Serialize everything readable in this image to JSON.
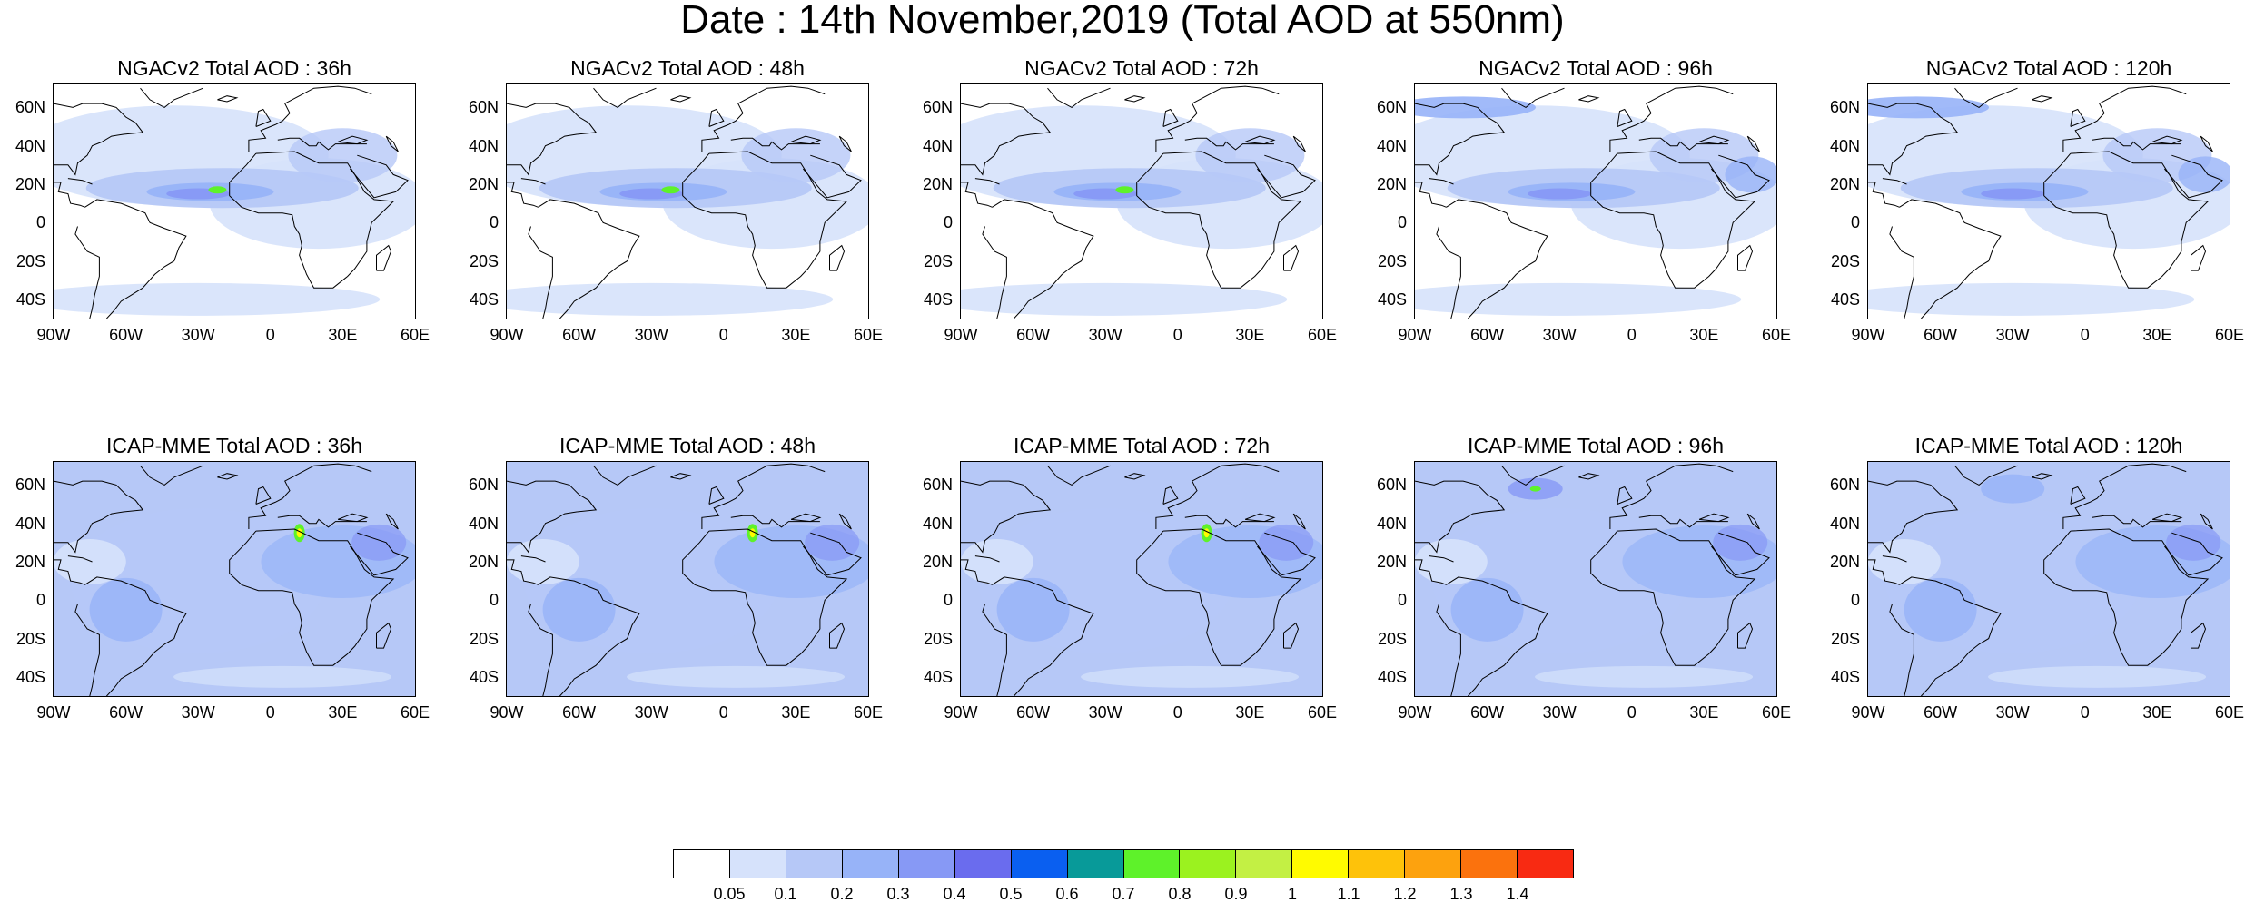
{
  "title": "Date : 14th November,2019 (Total AOD at 550nm)",
  "lat_ticks": [
    "60N",
    "40N",
    "20N",
    "0",
    "20S",
    "40S"
  ],
  "lon_ticks": [
    "90W",
    "60W",
    "30W",
    "0",
    "30E",
    "60E"
  ],
  "rows": [
    {
      "model": "NGACv2",
      "panels": [
        {
          "title": "NGACv2 Total AOD : 36h"
        },
        {
          "title": "NGACv2 Total AOD : 48h"
        },
        {
          "title": "NGACv2 Total AOD : 72h"
        },
        {
          "title": "NGACv2 Total AOD : 96h"
        },
        {
          "title": "NGACv2 Total AOD : 120h"
        }
      ]
    },
    {
      "model": "ICAP-MME",
      "panels": [
        {
          "title": "ICAP-MME Total AOD : 36h"
        },
        {
          "title": "ICAP-MME Total AOD : 48h"
        },
        {
          "title": "ICAP-MME Total AOD : 72h"
        },
        {
          "title": "ICAP-MME Total AOD : 96h"
        },
        {
          "title": "ICAP-MME Total AOD : 120h"
        }
      ]
    }
  ],
  "colorbar": {
    "labels": [
      "0.05",
      "0.1",
      "0.2",
      "0.3",
      "0.4",
      "0.5",
      "0.6",
      "0.7",
      "0.8",
      "0.9",
      "1",
      "1.1",
      "1.2",
      "1.3",
      "1.4"
    ],
    "colors": [
      "#ffffff",
      "#d6e2fb",
      "#b6c8f7",
      "#97b3f8",
      "#8799f5",
      "#6a6cee",
      "#0a5ff0",
      "#089a99",
      "#5ef22a",
      "#9bf21f",
      "#c3f044",
      "#fffb00",
      "#fec20a",
      "#fda20e",
      "#fb720d",
      "#f82a12"
    ]
  }
}
